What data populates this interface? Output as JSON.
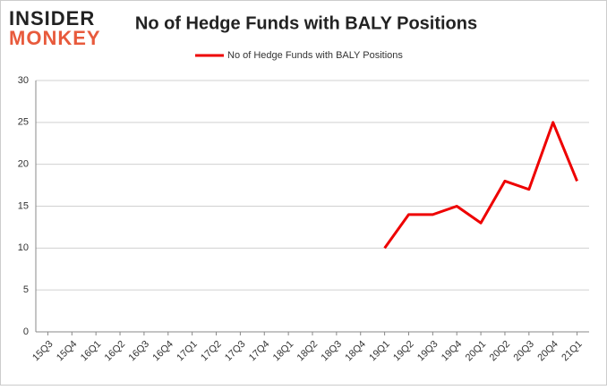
{
  "logo": {
    "line1": "INSIDER",
    "line2": "MONKEY"
  },
  "chart_data": {
    "type": "line",
    "title": "No of Hedge Funds with BALY Positions",
    "categories": [
      "15Q3",
      "15Q4",
      "16Q1",
      "16Q2",
      "16Q3",
      "16Q4",
      "17Q1",
      "17Q2",
      "17Q3",
      "17Q4",
      "18Q1",
      "18Q2",
      "18Q3",
      "18Q4",
      "19Q1",
      "19Q2",
      "19Q3",
      "19Q4",
      "20Q1",
      "20Q2",
      "20Q3",
      "20Q4",
      "21Q1"
    ],
    "series": [
      {
        "name": "No of Hedge Funds with BALY Positions",
        "color": "#ee0000",
        "values": [
          null,
          null,
          null,
          null,
          null,
          null,
          null,
          null,
          null,
          null,
          null,
          null,
          null,
          null,
          10,
          14,
          14,
          15,
          13,
          18,
          17,
          25,
          18
        ]
      }
    ],
    "ylim": [
      0,
      30
    ],
    "yticks": [
      0,
      5,
      10,
      15,
      20,
      25,
      30
    ],
    "grid": true,
    "legend": "top"
  }
}
